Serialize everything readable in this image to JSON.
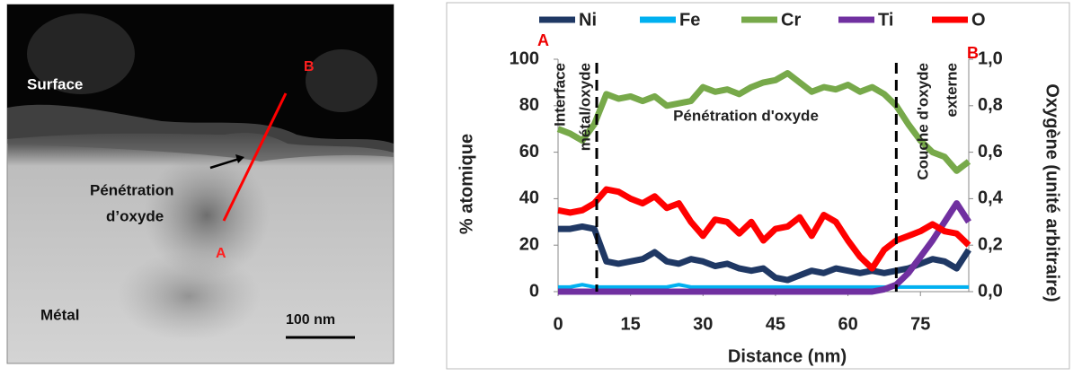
{
  "image": {
    "labels": {
      "surface": "Surface",
      "b": "B",
      "penetration_1": "Pénétration",
      "penetration_2": "d’oxyde",
      "a": "A",
      "metal": "Métal",
      "scale": "100 nm"
    }
  },
  "chart_data": {
    "type": "line",
    "x": [
      0,
      2.5,
      5,
      7.5,
      10,
      12.5,
      15,
      17.5,
      20,
      22.5,
      25,
      27.5,
      30,
      32.5,
      35,
      37.5,
      40,
      42.5,
      45,
      47.5,
      50,
      52.5,
      55,
      57.5,
      60,
      62.5,
      65,
      67.5,
      70,
      72.5,
      75,
      77.5,
      80,
      82.5,
      85
    ],
    "series": [
      {
        "name": "Ni",
        "color": "#1f3864",
        "values": [
          27,
          27,
          28,
          27,
          13,
          12,
          13,
          14,
          17,
          13,
          12,
          14,
          13,
          11,
          12,
          10,
          9,
          10,
          6,
          5,
          7,
          9,
          8,
          10,
          9,
          8,
          9,
          8,
          9,
          10,
          12,
          14,
          13,
          10,
          18
        ]
      },
      {
        "name": "Fe",
        "color": "#00b0f0",
        "values": [
          2,
          2,
          3,
          2,
          2,
          2,
          2,
          2,
          2,
          2,
          3,
          2,
          2,
          2,
          2,
          2,
          2,
          2,
          2,
          2,
          2,
          2,
          2,
          2,
          2,
          2,
          2,
          2,
          2,
          2,
          2,
          2,
          2,
          2,
          2
        ]
      },
      {
        "name": "Cr",
        "color": "#77a94a",
        "values": [
          70,
          68,
          65,
          72,
          85,
          83,
          84,
          82,
          84,
          80,
          81,
          82,
          88,
          86,
          87,
          85,
          88,
          90,
          91,
          94,
          90,
          86,
          88,
          87,
          89,
          86,
          88,
          85,
          80,
          72,
          65,
          60,
          58,
          52,
          56
        ]
      },
      {
        "name": "Ti",
        "color": "#7030a0",
        "values": [
          0,
          0,
          0,
          0,
          0,
          0,
          0,
          0,
          0,
          0,
          0,
          0,
          0,
          0,
          0,
          0,
          0,
          0,
          0,
          0,
          0,
          0,
          0,
          0,
          0,
          0,
          0,
          1,
          3,
          8,
          15,
          22,
          30,
          38,
          30
        ]
      },
      {
        "name": "O",
        "color": "#ff0000",
        "axis": "y2",
        "values": [
          0.35,
          0.34,
          0.35,
          0.38,
          0.44,
          0.43,
          0.4,
          0.38,
          0.41,
          0.36,
          0.38,
          0.3,
          0.24,
          0.31,
          0.3,
          0.25,
          0.3,
          0.22,
          0.27,
          0.28,
          0.32,
          0.24,
          0.33,
          0.3,
          0.22,
          0.15,
          0.1,
          0.18,
          0.22,
          0.24,
          0.26,
          0.29,
          0.26,
          0.25,
          0.2
        ]
      }
    ],
    "xlabel": "Distance (nm)",
    "ylabel": "% atomique",
    "y2label": "Oxygène (unité arbitraire)",
    "xlim": [
      0,
      85
    ],
    "xticks": [
      0,
      15,
      30,
      45,
      60,
      75
    ],
    "ylim": [
      0,
      100
    ],
    "yticks": [
      0,
      20,
      40,
      60,
      80,
      100
    ],
    "y2lim": [
      0,
      1
    ],
    "y2ticks": [
      {
        "value": 0,
        "label": "0,0"
      },
      {
        "value": 0.2,
        "label": "0,2"
      },
      {
        "value": 0.4,
        "label": "0,4"
      },
      {
        "value": 0.6,
        "label": "0,6"
      },
      {
        "value": 0.8,
        "label": "0,8"
      },
      {
        "value": 1,
        "label": "1,0"
      }
    ],
    "dividers": [
      8,
      70
    ],
    "annotations": {
      "a": "A",
      "b": "B",
      "interface_1": "Interface",
      "interface_2": "métal/oxyde",
      "penetration": "Pénétration d'oxyde",
      "couche_1": "Couche d'oxyde",
      "couche_2": "externe"
    }
  }
}
